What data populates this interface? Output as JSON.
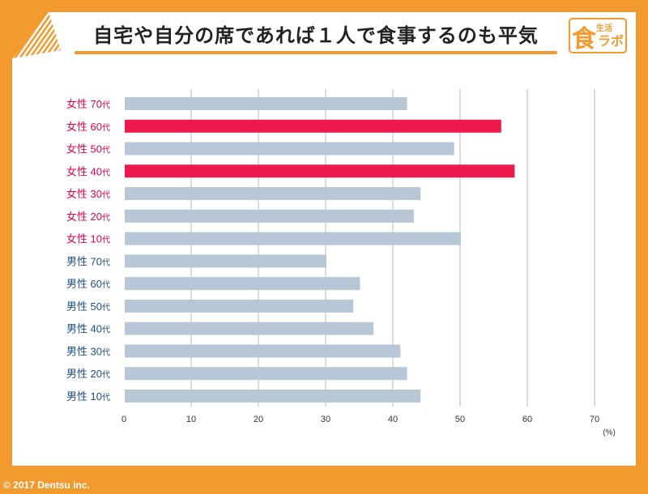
{
  "title": "自宅や自分の席であれば１人で食事するのも平気",
  "logo": "食生活ラボ",
  "footer": "© 2017 Dentsu inc.",
  "colors": {
    "background": "#F39A2E",
    "highlight": "#EE1A4D",
    "bar": "#B7C7D6",
    "female_label": "#E5004F",
    "male_label": "#1F4D8C"
  },
  "chart_data": {
    "type": "bar",
    "orientation": "horizontal",
    "categories": [
      "女性 70代",
      "女性 60代",
      "女性 50代",
      "女性 40代",
      "女性 30代",
      "女性 20代",
      "女性 10代",
      "男性 70代",
      "男性 60代",
      "男性 50代",
      "男性 40代",
      "男性 30代",
      "男性 20代",
      "男性 10代"
    ],
    "values": [
      42,
      56,
      49,
      58,
      44,
      43,
      50,
      30,
      35,
      34,
      37,
      41,
      42,
      44
    ],
    "highlighted": [
      "女性 60代",
      "女性 40代"
    ],
    "xlim": [
      0,
      70
    ],
    "xticks": [
      0,
      10,
      20,
      30,
      40,
      50,
      60,
      70
    ],
    "xunit": "(%)",
    "grid": true
  }
}
